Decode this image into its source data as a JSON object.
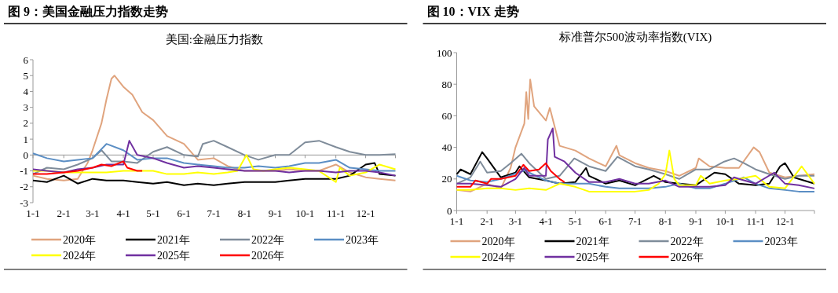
{
  "chart_data": [
    {
      "type": "line",
      "title": "图 9：美国金融压力指数走势",
      "subtitle": "美国:金融压力指数",
      "legend": "bottom",
      "xlim": [
        "--01-01",
        "--12-31"
      ],
      "ylim": [
        -3,
        6
      ],
      "yticks": [
        -3,
        -2,
        -1,
        0,
        1,
        2,
        3,
        4,
        5,
        6
      ],
      "xticks": [
        {
          "value": "--01-01",
          "label": "1-1"
        },
        {
          "value": "--02-01",
          "label": "2-1"
        },
        {
          "value": "--03-01",
          "label": "3-1"
        },
        {
          "value": "--04-01",
          "label": "4-1"
        },
        {
          "value": "--05-01",
          "label": "5-1"
        },
        {
          "value": "--06-01",
          "label": "6-1"
        },
        {
          "value": "--07-01",
          "label": "7-1"
        },
        {
          "value": "--08-01",
          "label": "8-1"
        },
        {
          "value": "--09-01",
          "label": "9-1"
        },
        {
          "value": "--10-01",
          "label": "10-1"
        },
        {
          "value": "--11-01",
          "label": "11-1"
        },
        {
          "value": "--12-01",
          "label": "12-1"
        }
      ],
      "series": [
        {
          "name": "2020年",
          "color": "#e0a47e",
          "x": [
            "--01-01",
            "--01-15",
            "--02-01",
            "--02-15",
            "--02-25",
            "--03-01",
            "--03-10",
            "--03-15",
            "--03-20",
            "--03-23",
            "--04-01",
            "--04-10",
            "--04-20",
            "--05-01",
            "--05-15",
            "--06-01",
            "--06-15",
            "--07-01",
            "--07-15",
            "--08-01",
            "--08-15",
            "--09-01",
            "--09-15",
            "--10-01",
            "--10-15",
            "--11-01",
            "--11-15",
            "--12-01",
            "--12-15",
            "--12-31"
          ],
          "values": [
            -1.3,
            -1.5,
            -1.6,
            -1.5,
            -0.5,
            0.3,
            2.0,
            3.5,
            4.8,
            5.0,
            4.3,
            3.8,
            2.7,
            2.2,
            1.2,
            0.7,
            -0.3,
            -0.2,
            -0.7,
            -1.0,
            -1.0,
            -1.0,
            -0.9,
            -1.0,
            -1.0,
            -0.6,
            -1.1,
            -1.4,
            -1.5,
            -1.6
          ]
        },
        {
          "name": "2021年",
          "color": "#000000",
          "x": [
            "--01-01",
            "--01-15",
            "--02-01",
            "--02-15",
            "--03-01",
            "--03-15",
            "--04-01",
            "--04-15",
            "--05-01",
            "--05-15",
            "--06-01",
            "--06-15",
            "--07-01",
            "--07-15",
            "--08-01",
            "--08-15",
            "--09-01",
            "--09-15",
            "--10-01",
            "--10-15",
            "--11-01",
            "--11-15",
            "--12-01",
            "--12-10",
            "--12-15",
            "--12-31"
          ],
          "values": [
            -1.6,
            -1.7,
            -1.3,
            -1.8,
            -1.5,
            -1.6,
            -1.6,
            -1.7,
            -1.8,
            -1.7,
            -1.9,
            -1.8,
            -1.9,
            -1.8,
            -1.7,
            -1.7,
            -1.7,
            -1.6,
            -1.5,
            -1.5,
            -1.5,
            -1.3,
            -0.6,
            -0.5,
            -1.2,
            -1.3
          ]
        },
        {
          "name": "2022年",
          "color": "#7f8c9a",
          "x": [
            "--01-01",
            "--01-15",
            "--02-01",
            "--02-15",
            "--03-01",
            "--03-10",
            "--03-20",
            "--04-01",
            "--04-15",
            "--05-01",
            "--05-15",
            "--06-01",
            "--06-15",
            "--06-20",
            "--07-01",
            "--07-15",
            "--08-01",
            "--08-15",
            "--09-01",
            "--09-15",
            "--10-01",
            "--10-15",
            "--11-01",
            "--11-15",
            "--12-01",
            "--12-15",
            "--12-31"
          ],
          "values": [
            -1.2,
            -0.8,
            -0.9,
            -0.6,
            -0.2,
            0.3,
            -0.4,
            -0.4,
            -0.5,
            0.2,
            0.5,
            0.0,
            -0.1,
            0.7,
            0.9,
            0.5,
            0.0,
            -0.3,
            0.0,
            0.0,
            0.8,
            0.9,
            0.5,
            0.2,
            0.0,
            0.0,
            0.05
          ]
        },
        {
          "name": "2023年",
          "color": "#5b8ec4",
          "x": [
            "--01-01",
            "--01-15",
            "--02-01",
            "--02-15",
            "--03-01",
            "--03-15",
            "--04-01",
            "--04-15",
            "--05-01",
            "--05-15",
            "--06-01",
            "--06-15",
            "--07-01",
            "--07-15",
            "--08-01",
            "--08-15",
            "--09-01",
            "--09-15",
            "--10-01",
            "--10-15",
            "--11-01",
            "--11-15",
            "--12-01",
            "--12-15",
            "--12-31"
          ],
          "values": [
            0.1,
            -0.2,
            -0.4,
            -0.3,
            -0.2,
            0.7,
            0.3,
            -0.3,
            -0.2,
            -0.2,
            -0.5,
            -0.6,
            -0.7,
            -0.8,
            -0.8,
            -0.7,
            -0.8,
            -0.7,
            -0.5,
            -0.5,
            -0.3,
            -0.8,
            -0.9,
            -1.0,
            -1.0
          ]
        },
        {
          "name": "2024年",
          "color": "#ffff00",
          "x": [
            "--01-01",
            "--01-15",
            "--02-01",
            "--02-15",
            "--03-01",
            "--03-15",
            "--04-01",
            "--04-15",
            "--05-01",
            "--05-15",
            "--06-01",
            "--06-15",
            "--07-01",
            "--07-15",
            "--07-25",
            "--08-03",
            "--08-10",
            "--08-20",
            "--09-01",
            "--09-15",
            "--10-01",
            "--10-15",
            "--11-01",
            "--11-05",
            "--11-15",
            "--12-01",
            "--12-15",
            "--12-31"
          ],
          "values": [
            -1.0,
            -1.0,
            -1.1,
            -1.1,
            -1.1,
            -1.1,
            -1.0,
            -1.0,
            -1.0,
            -1.2,
            -1.2,
            -1.1,
            -1.2,
            -1.1,
            -1.0,
            0.0,
            -0.9,
            -1.0,
            -0.9,
            -0.8,
            -0.9,
            -1.0,
            -1.7,
            -0.8,
            -1.3,
            -1.1,
            -0.6,
            -0.9
          ]
        },
        {
          "name": "2025年",
          "color": "#7030a0",
          "x": [
            "--01-01",
            "--01-15",
            "--02-01",
            "--02-15",
            "--03-01",
            "--03-15",
            "--04-01",
            "--04-07",
            "--04-15",
            "--05-01",
            "--05-15",
            "--06-01",
            "--06-15",
            "--07-01",
            "--07-15",
            "--08-01",
            "--08-15",
            "--09-01",
            "--09-15",
            "--10-01",
            "--10-15",
            "--11-01",
            "--11-15",
            "--12-01",
            "--12-15",
            "--12-31"
          ],
          "values": [
            -0.9,
            -1.0,
            -1.1,
            -0.9,
            -0.8,
            -0.6,
            -0.6,
            0.9,
            0.0,
            -0.2,
            -0.5,
            -0.8,
            -0.7,
            -0.8,
            -0.9,
            -1.0,
            -1.0,
            -1.0,
            -1.1,
            -1.0,
            -1.0,
            -1.1,
            -1.0,
            -1.0,
            -1.1,
            -1.3
          ]
        },
        {
          "name": "2026年",
          "color": "#ff0000",
          "x": [
            "--01-01",
            "--01-15",
            "--02-01",
            "--02-15",
            "--03-01",
            "--03-10",
            "--03-20",
            "--04-01",
            "--04-05",
            "--04-15",
            "--04-20"
          ],
          "values": [
            -1.2,
            -1.2,
            -1.1,
            -1.0,
            -0.8,
            -0.6,
            -0.7,
            -0.4,
            -0.8,
            -1.0,
            -1.0
          ]
        }
      ]
    },
    {
      "type": "line",
      "title": "图 10：VIX 走势",
      "subtitle": "标准普尔500波动率指数(VIX)",
      "legend": "bottom",
      "xlim": [
        "--01-01",
        "--12-31"
      ],
      "ylim": [
        0,
        100
      ],
      "yticks": [
        0,
        20,
        40,
        60,
        80,
        100
      ],
      "xticks": [
        {
          "value": "--01-01",
          "label": "1-1"
        },
        {
          "value": "--02-01",
          "label": "2-1"
        },
        {
          "value": "--03-01",
          "label": "3-1"
        },
        {
          "value": "--04-01",
          "label": "4-1"
        },
        {
          "value": "--05-01",
          "label": "5-1"
        },
        {
          "value": "--06-01",
          "label": "6-1"
        },
        {
          "value": "--07-01",
          "label": "7-1"
        },
        {
          "value": "--08-01",
          "label": "8-1"
        },
        {
          "value": "--09-01",
          "label": "9-1"
        },
        {
          "value": "--10-01",
          "label": "10-1"
        },
        {
          "value": "--11-01",
          "label": "11-1"
        },
        {
          "value": "--12-01",
          "label": "12-1"
        }
      ],
      "series": [
        {
          "name": "2020年",
          "color": "#e0a47e",
          "x": [
            "--01-01",
            "--01-15",
            "--02-01",
            "--02-15",
            "--02-25",
            "--03-01",
            "--03-10",
            "--03-12",
            "--03-14",
            "--03-16",
            "--03-20",
            "--04-01",
            "--04-05",
            "--04-15",
            "--05-01",
            "--05-15",
            "--06-01",
            "--06-12",
            "--06-15",
            "--07-01",
            "--07-15",
            "--08-01",
            "--08-15",
            "--09-01",
            "--09-04",
            "--09-15",
            "--10-01",
            "--10-15",
            "--10-30",
            "--11-05",
            "--11-15",
            "--12-01",
            "--12-15",
            "--12-31"
          ],
          "values": [
            13,
            12,
            17,
            14,
            27,
            40,
            55,
            75,
            58,
            83,
            66,
            57,
            65,
            41,
            38,
            33,
            28,
            41,
            35,
            30,
            27,
            25,
            22,
            27,
            33,
            28,
            27,
            27,
            40,
            37,
            24,
            21,
            22,
            23
          ]
        },
        {
          "name": "2021年",
          "color": "#000000",
          "x": [
            "--01-01",
            "--01-05",
            "--01-15",
            "--01-27",
            "--02-01",
            "--02-15",
            "--03-01",
            "--03-05",
            "--03-15",
            "--04-01",
            "--04-15",
            "--05-01",
            "--05-12",
            "--05-15",
            "--06-01",
            "--06-15",
            "--07-01",
            "--07-20",
            "--08-01",
            "--08-15",
            "--09-01",
            "--09-20",
            "--10-01",
            "--10-15",
            "--11-01",
            "--11-15",
            "--11-26",
            "--12-01",
            "--12-10",
            "--12-15",
            "--12-31"
          ],
          "values": [
            23,
            26,
            23,
            37,
            33,
            21,
            24,
            28,
            21,
            19,
            17,
            18,
            27,
            22,
            17,
            19,
            16,
            22,
            18,
            17,
            16,
            24,
            23,
            17,
            16,
            17,
            28,
            30,
            21,
            20,
            17
          ]
        },
        {
          "name": "2022年",
          "color": "#7f8c9a",
          "x": [
            "--01-01",
            "--01-15",
            "--01-25",
            "--02-01",
            "--02-15",
            "--02-25",
            "--03-07",
            "--03-15",
            "--04-01",
            "--04-15",
            "--04-30",
            "--05-15",
            "--06-01",
            "--06-13",
            "--07-01",
            "--07-15",
            "--08-01",
            "--08-15",
            "--09-01",
            "--09-15",
            "--09-30",
            "--10-10",
            "--10-20",
            "--11-01",
            "--11-15",
            "--12-01",
            "--12-15",
            "--12-31"
          ],
          "values": [
            17,
            21,
            31,
            24,
            25,
            30,
            36,
            30,
            20,
            22,
            33,
            28,
            25,
            34,
            28,
            26,
            23,
            20,
            26,
            26,
            31,
            33,
            30,
            26,
            23,
            20,
            22,
            22
          ]
        },
        {
          "name": "2023年",
          "color": "#5b8ec4",
          "x": [
            "--01-01",
            "--01-15",
            "--02-01",
            "--02-15",
            "--03-13",
            "--03-15",
            "--04-01",
            "--04-15",
            "--05-01",
            "--05-15",
            "--06-01",
            "--06-15",
            "--07-01",
            "--07-15",
            "--08-01",
            "--08-15",
            "--09-01",
            "--09-15",
            "--10-01",
            "--10-20",
            "--11-01",
            "--11-15",
            "--12-01",
            "--12-15",
            "--12-31"
          ],
          "values": [
            22,
            19,
            18,
            20,
            26,
            24,
            19,
            17,
            17,
            17,
            15,
            14,
            14,
            14,
            15,
            17,
            14,
            14,
            17,
            21,
            17,
            14,
            13,
            12,
            12
          ]
        },
        {
          "name": "2024年",
          "color": "#ffff00",
          "x": [
            "--01-01",
            "--01-15",
            "--02-01",
            "--02-15",
            "--03-01",
            "--03-15",
            "--04-01",
            "--04-15",
            "--05-01",
            "--05-15",
            "--06-01",
            "--06-15",
            "--07-01",
            "--07-15",
            "--07-25",
            "--08-01",
            "--08-05",
            "--08-10",
            "--08-15",
            "--09-01",
            "--09-06",
            "--09-15",
            "--10-01",
            "--10-15",
            "--11-01",
            "--11-05",
            "--11-15",
            "--12-01",
            "--12-18",
            "--12-31"
          ],
          "values": [
            13,
            13,
            14,
            14,
            13,
            14,
            13,
            17,
            15,
            12,
            12,
            12,
            12,
            13,
            17,
            23,
            38,
            20,
            16,
            16,
            22,
            17,
            19,
            20,
            22,
            20,
            15,
            14,
            28,
            17
          ]
        },
        {
          "name": "2025年",
          "color": "#7030a0",
          "x": [
            "--01-01",
            "--01-15",
            "--02-01",
            "--02-15",
            "--03-01",
            "--03-10",
            "--03-15",
            "--04-01",
            "--04-03",
            "--04-08",
            "--04-10",
            "--04-20",
            "--05-01",
            "--05-15",
            "--06-01",
            "--06-15",
            "--07-01",
            "--07-15",
            "--08-01",
            "--08-15",
            "--09-01",
            "--09-15",
            "--10-01",
            "--10-10",
            "--10-15",
            "--11-01",
            "--11-20",
            "--12-01",
            "--12-15",
            "--12-31"
          ],
          "values": [
            17,
            17,
            16,
            15,
            20,
            27,
            22,
            22,
            45,
            52,
            34,
            31,
            24,
            18,
            18,
            20,
            17,
            17,
            19,
            15,
            15,
            15,
            16,
            21,
            20,
            17,
            24,
            17,
            16,
            14
          ]
        },
        {
          "name": "2026年",
          "color": "#ff0000",
          "x": [
            "--01-01",
            "--01-15",
            "--01-20",
            "--02-01",
            "--02-05",
            "--02-15",
            "--03-01",
            "--03-09",
            "--03-15",
            "--03-25",
            "--04-01",
            "--04-06",
            "--04-15",
            "--04-20"
          ],
          "values": [
            15,
            15,
            19,
            17,
            20,
            20,
            22,
            29,
            25,
            26,
            30,
            25,
            20,
            18
          ]
        }
      ]
    }
  ]
}
